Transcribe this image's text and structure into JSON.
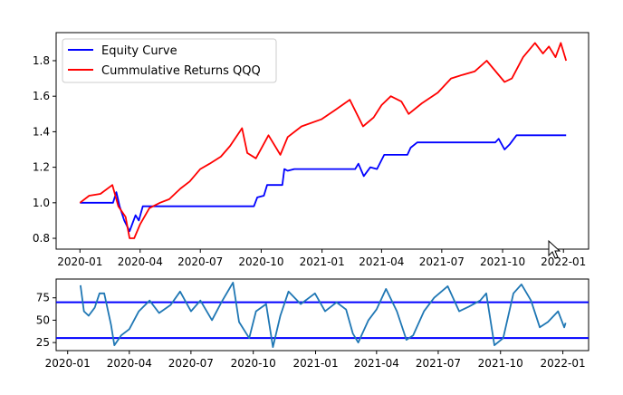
{
  "chart_data": [
    {
      "type": "line",
      "title": "",
      "xlabel": "",
      "ylabel": "",
      "xlim": [
        "2019-11-26",
        "2022-02-08"
      ],
      "ylim": [
        0.739,
        1.958
      ],
      "x_ticks": [
        "2020-01",
        "2020-04",
        "2020-07",
        "2020-10",
        "2021-01",
        "2021-04",
        "2021-07",
        "2021-10",
        "2022-01"
      ],
      "y_ticks": [
        0.8,
        1.0,
        1.2,
        1.4,
        1.6,
        1.8
      ],
      "grid": false,
      "legend": {
        "placement": "top-left",
        "entries": [
          "Equity Curve",
          "Cummulative Returns QQQ"
        ]
      },
      "series": [
        {
          "name": "Equity Curve",
          "color": "#0000ff",
          "points": [
            [
              "2020-01-01",
              1.0
            ],
            [
              "2020-02-20",
              1.0
            ],
            [
              "2020-02-25",
              1.06
            ],
            [
              "2020-03-01",
              0.98
            ],
            [
              "2020-03-08",
              0.9
            ],
            [
              "2020-03-16",
              0.84
            ],
            [
              "2020-03-25",
              0.93
            ],
            [
              "2020-03-30",
              0.9
            ],
            [
              "2020-04-05",
              0.98
            ],
            [
              "2020-09-20",
              0.98
            ],
            [
              "2020-09-25",
              1.03
            ],
            [
              "2020-10-05",
              1.04
            ],
            [
              "2020-10-10",
              1.1
            ],
            [
              "2020-11-02",
              1.1
            ],
            [
              "2020-11-05",
              1.19
            ],
            [
              "2020-11-10",
              1.18
            ],
            [
              "2020-11-20",
              1.19
            ],
            [
              "2021-02-20",
              1.19
            ],
            [
              "2021-02-25",
              1.22
            ],
            [
              "2021-03-05",
              1.15
            ],
            [
              "2021-03-15",
              1.2
            ],
            [
              "2021-03-25",
              1.19
            ],
            [
              "2021-04-05",
              1.27
            ],
            [
              "2021-05-10",
              1.27
            ],
            [
              "2021-05-15",
              1.31
            ],
            [
              "2021-05-25",
              1.34
            ],
            [
              "2021-09-20",
              1.34
            ],
            [
              "2021-09-25",
              1.36
            ],
            [
              "2021-10-04",
              1.3
            ],
            [
              "2021-10-12",
              1.33
            ],
            [
              "2021-10-22",
              1.38
            ],
            [
              "2022-01-05",
              1.38
            ]
          ]
        },
        {
          "name": "Cummulative Returns QQQ",
          "color": "#ff0000",
          "points": [
            [
              "2020-01-01",
              1.0
            ],
            [
              "2020-01-15",
              1.04
            ],
            [
              "2020-02-01",
              1.05
            ],
            [
              "2020-02-19",
              1.1
            ],
            [
              "2020-02-28",
              0.98
            ],
            [
              "2020-03-10",
              0.92
            ],
            [
              "2020-03-16",
              0.8
            ],
            [
              "2020-03-23",
              0.8
            ],
            [
              "2020-04-01",
              0.88
            ],
            [
              "2020-04-15",
              0.97
            ],
            [
              "2020-05-01",
              1.0
            ],
            [
              "2020-05-15",
              1.02
            ],
            [
              "2020-06-01",
              1.08
            ],
            [
              "2020-06-15",
              1.12
            ],
            [
              "2020-07-01",
              1.19
            ],
            [
              "2020-07-15",
              1.22
            ],
            [
              "2020-08-01",
              1.26
            ],
            [
              "2020-08-15",
              1.32
            ],
            [
              "2020-09-02",
              1.42
            ],
            [
              "2020-09-10",
              1.28
            ],
            [
              "2020-09-23",
              1.25
            ],
            [
              "2020-10-12",
              1.38
            ],
            [
              "2020-10-30",
              1.27
            ],
            [
              "2020-11-10",
              1.37
            ],
            [
              "2020-12-01",
              1.43
            ],
            [
              "2020-12-31",
              1.47
            ],
            [
              "2021-01-20",
              1.52
            ],
            [
              "2021-02-12",
              1.58
            ],
            [
              "2021-03-04",
              1.43
            ],
            [
              "2021-03-20",
              1.48
            ],
            [
              "2021-04-01",
              1.55
            ],
            [
              "2021-04-15",
              1.6
            ],
            [
              "2021-05-01",
              1.57
            ],
            [
              "2021-05-12",
              1.5
            ],
            [
              "2021-06-01",
              1.56
            ],
            [
              "2021-06-25",
              1.62
            ],
            [
              "2021-07-15",
              1.7
            ],
            [
              "2021-08-01",
              1.72
            ],
            [
              "2021-08-20",
              1.74
            ],
            [
              "2021-09-07",
              1.8
            ],
            [
              "2021-10-04",
              1.68
            ],
            [
              "2021-10-15",
              1.7
            ],
            [
              "2021-11-01",
              1.82
            ],
            [
              "2021-11-19",
              1.9
            ],
            [
              "2021-12-01",
              1.84
            ],
            [
              "2021-12-10",
              1.88
            ],
            [
              "2021-12-20",
              1.82
            ],
            [
              "2021-12-28",
              1.9
            ],
            [
              "2022-01-05",
              1.8
            ]
          ]
        }
      ]
    },
    {
      "type": "line",
      "title": "",
      "xlabel": "",
      "ylabel": "",
      "xlim": [
        "2019-12-15",
        "2022-02-08"
      ],
      "ylim": [
        16,
        96
      ],
      "x_ticks": [
        "2020-01",
        "2020-04",
        "2020-07",
        "2020-10",
        "2021-01",
        "2021-04",
        "2021-07",
        "2021-10",
        "2022-01"
      ],
      "y_ticks": [
        25,
        50,
        75
      ],
      "grid": false,
      "hlines": [
        {
          "value": 70,
          "color": "#0000ff"
        },
        {
          "value": 30,
          "color": "#0000ff"
        }
      ],
      "series": [
        {
          "color": "#1f77b4",
          "points": [
            [
              "2020-01-20",
              89
            ],
            [
              "2020-01-25",
              60
            ],
            [
              "2020-02-01",
              55
            ],
            [
              "2020-02-10",
              64
            ],
            [
              "2020-02-17",
              80
            ],
            [
              "2020-02-24",
              80
            ],
            [
              "2020-03-05",
              45
            ],
            [
              "2020-03-10",
              22
            ],
            [
              "2020-03-20",
              33
            ],
            [
              "2020-04-01",
              40
            ],
            [
              "2020-04-15",
              60
            ],
            [
              "2020-05-01",
              72
            ],
            [
              "2020-05-15",
              58
            ],
            [
              "2020-06-01",
              67
            ],
            [
              "2020-06-15",
              82
            ],
            [
              "2020-07-01",
              60
            ],
            [
              "2020-07-15",
              72
            ],
            [
              "2020-08-01",
              50
            ],
            [
              "2020-08-15",
              70
            ],
            [
              "2020-09-01",
              92
            ],
            [
              "2020-09-10",
              48
            ],
            [
              "2020-09-25",
              30
            ],
            [
              "2020-10-05",
              60
            ],
            [
              "2020-10-20",
              68
            ],
            [
              "2020-10-30",
              20
            ],
            [
              "2020-11-10",
              55
            ],
            [
              "2020-11-22",
              82
            ],
            [
              "2020-12-10",
              68
            ],
            [
              "2020-12-31",
              80
            ],
            [
              "2021-01-15",
              60
            ],
            [
              "2021-02-01",
              70
            ],
            [
              "2021-02-15",
              62
            ],
            [
              "2021-02-25",
              35
            ],
            [
              "2021-03-05",
              25
            ],
            [
              "2021-03-20",
              50
            ],
            [
              "2021-04-01",
              62
            ],
            [
              "2021-04-15",
              85
            ],
            [
              "2021-05-01",
              60
            ],
            [
              "2021-05-15",
              28
            ],
            [
              "2021-05-25",
              33
            ],
            [
              "2021-06-10",
              60
            ],
            [
              "2021-06-25",
              75
            ],
            [
              "2021-07-15",
              88
            ],
            [
              "2021-08-01",
              60
            ],
            [
              "2021-08-15",
              65
            ],
            [
              "2021-09-01",
              72
            ],
            [
              "2021-09-10",
              80
            ],
            [
              "2021-09-22",
              22
            ],
            [
              "2021-10-05",
              30
            ],
            [
              "2021-10-20",
              80
            ],
            [
              "2021-11-01",
              90
            ],
            [
              "2021-11-15",
              72
            ],
            [
              "2021-11-28",
              42
            ],
            [
              "2021-12-10",
              48
            ],
            [
              "2021-12-25",
              60
            ],
            [
              "2022-01-03",
              42
            ],
            [
              "2022-01-05",
              47
            ]
          ]
        }
      ]
    }
  ]
}
